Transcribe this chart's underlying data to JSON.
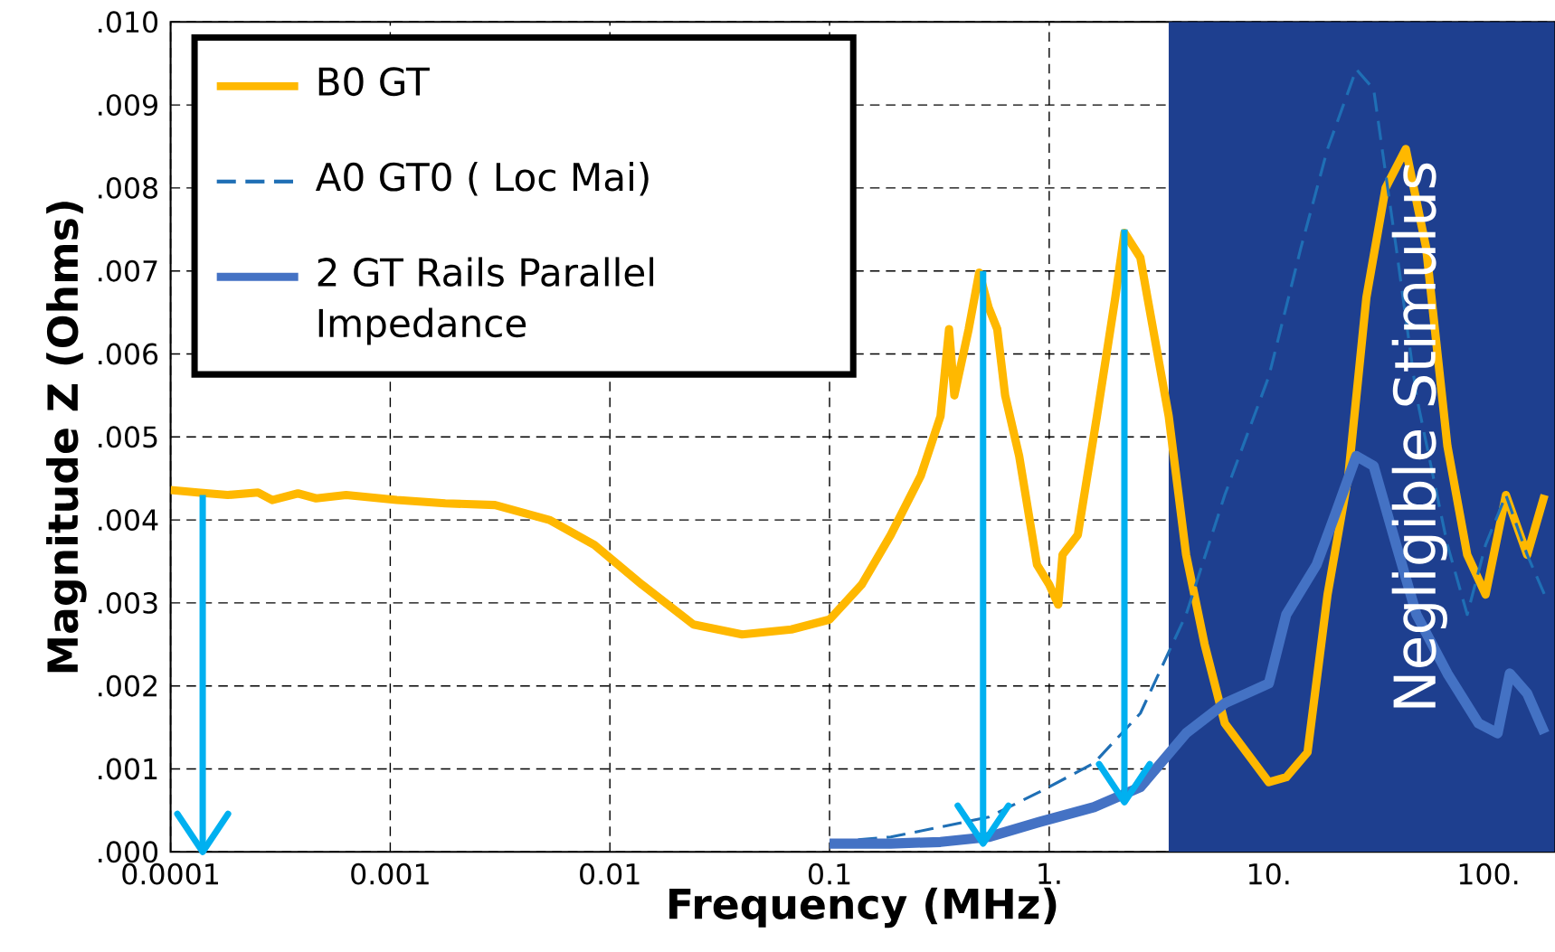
{
  "chart_data": {
    "type": "line",
    "xlabel": "Frequency (MHz)",
    "ylabel": "Magnitude Z (Ohms)",
    "log": "x",
    "grid": true,
    "legend": "top left",
    "line_style": "solid",
    "xlim": [
      0.0001,
      200
    ],
    "ylim": [
      0,
      0.01
    ],
    "xticks": [
      0.0001,
      0.001,
      0.01,
      0.1,
      {
        "value": 1,
        "label": "1."
      },
      {
        "value": 10,
        "label": "10."
      },
      {
        "value": 100,
        "label": "100."
      }
    ],
    "yticks": [
      {
        "value": 0,
        "label": ".000"
      },
      {
        "value": 0.001,
        "label": ".001"
      },
      {
        "value": 0.002,
        "label": ".002"
      },
      {
        "value": 0.003,
        "label": ".003"
      },
      {
        "value": 0.004,
        "label": ".004"
      },
      {
        "value": 0.005,
        "label": ".005"
      },
      {
        "value": 0.006,
        "label": ".006"
      },
      {
        "value": 0.007,
        "label": ".007"
      },
      {
        "value": 0.008,
        "label": ".008"
      },
      {
        "value": 0.009,
        "label": ".009"
      },
      {
        "value": 0.01,
        "label": ".010"
      }
    ],
    "bands": [
      {
        "axis": "x",
        "from": 3.5,
        "to": 200,
        "label": "Negligible Stimulus",
        "color": "#1e3f8f"
      }
    ],
    "series": [
      {
        "name": "B0 GT",
        "color": "#ffb800",
        "x": [
          0.0001,
          0.000133,
          0.000182,
          0.00025,
          0.00029,
          0.00038,
          0.00046,
          0.00063,
          0.00107,
          0.00178,
          0.003,
          0.0053,
          0.0085,
          0.014,
          0.024,
          0.04,
          0.067,
          0.1,
          0.14,
          0.19,
          0.26,
          0.32,
          0.35,
          0.37,
          0.43,
          0.48,
          0.53,
          0.58,
          0.63,
          0.73,
          0.88,
          1.0,
          1.1,
          1.15,
          1.35,
          1.65,
          2.0,
          2.2,
          2.6,
          2.8,
          3.5,
          4.2,
          5.1,
          6.3,
          10,
          12,
          15,
          18.5,
          23,
          27.8,
          34,
          42,
          52,
          65,
          80,
          97,
          120,
          150,
          180
        ],
        "values": [
          0.00436,
          0.00433,
          0.0043,
          0.00433,
          0.00424,
          0.00432,
          0.00426,
          0.0043,
          0.00424,
          0.0042,
          0.00418,
          0.004,
          0.0037,
          0.00322,
          0.00274,
          0.00262,
          0.00268,
          0.0028,
          0.00322,
          0.00382,
          0.00453,
          0.00525,
          0.0063,
          0.0055,
          0.0063,
          0.00698,
          0.00656,
          0.0063,
          0.0055,
          0.00477,
          0.00346,
          0.00322,
          0.00298,
          0.00358,
          0.00382,
          0.00525,
          0.00668,
          0.00746,
          0.00716,
          0.00668,
          0.00525,
          0.00358,
          0.0025,
          0.00155,
          0.00084,
          0.0009,
          0.0012,
          0.0031,
          0.00453,
          0.00668,
          0.008,
          0.00847,
          0.00728,
          0.00489,
          0.00358,
          0.0031,
          0.0043,
          0.00358,
          0.0043
        ]
      },
      {
        "name": "A0 GT0 ( Loc Mai)",
        "color": "#1f6fb5",
        "line_style": "dashed",
        "x": [
          0.1,
          0.19,
          0.32,
          0.53,
          0.9,
          1.6,
          2.6,
          4.2,
          6.3,
          10,
          14,
          18.5,
          25,
          30,
          38,
          47,
          65,
          80,
          97,
          120,
          150,
          180
        ],
        "values": [
          0.00012,
          0.00018,
          0.0003,
          0.00042,
          0.00072,
          0.00107,
          0.00167,
          0.00286,
          0.0043,
          0.00573,
          0.00728,
          0.00847,
          0.00943,
          0.00919,
          0.00728,
          0.00549,
          0.0037,
          0.00286,
          0.0037,
          0.0043,
          0.00358,
          0.0031
        ]
      },
      {
        "name": "2 GT Rails Parallel Impedance",
        "color": "#4472c4",
        "x": [
          0.1,
          0.19,
          0.32,
          0.53,
          0.9,
          1.6,
          2.6,
          4.2,
          6.3,
          10,
          12,
          16.5,
          20,
          25,
          30,
          38,
          47,
          65,
          90,
          110,
          125,
          150,
          180
        ],
        "values": [
          0.0001,
          0.0001,
          0.00012,
          0.00018,
          0.00036,
          0.00054,
          0.00078,
          0.00143,
          0.00179,
          0.00203,
          0.00286,
          0.00346,
          0.00406,
          0.00477,
          0.00465,
          0.0037,
          0.00286,
          0.00215,
          0.00155,
          0.00143,
          0.00215,
          0.00191,
          0.00143
        ]
      },
      {
        "color": "#00b0f0",
        "x": [
          0.00014,
          0.00014
        ],
        "values": [
          0.0043,
          0.0
        ]
      },
      {
        "color": "#00b0f0",
        "x": [
          0.5,
          0.5
        ],
        "values": [
          0.007,
          0.0001
        ]
      },
      {
        "color": "#00b0f0",
        "x": [
          2.2,
          2.2
        ],
        "values": [
          0.0075,
          0.0006
        ]
      }
    ]
  }
}
